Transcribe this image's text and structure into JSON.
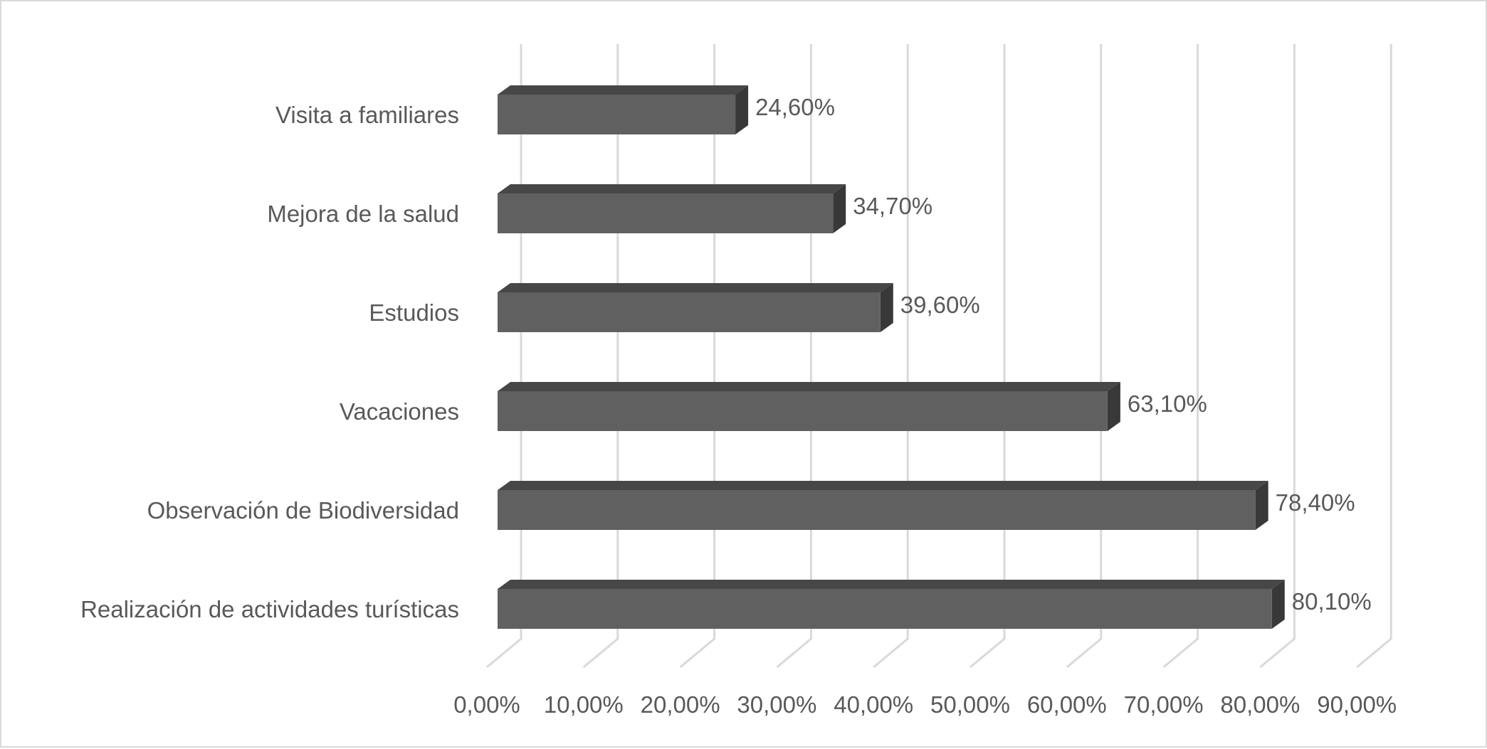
{
  "chart_data": {
    "type": "bar",
    "orientation": "horizontal",
    "style": "3d",
    "title": "",
    "xlabel": "",
    "ylabel": "",
    "categories": [
      "Visita a familiares",
      "Mejora de la salud",
      "Estudios",
      "Vacaciones",
      "Observación de Biodiversidad",
      "Realización de actividades turísticas"
    ],
    "values": [
      24.6,
      34.7,
      39.6,
      63.1,
      78.4,
      80.1
    ],
    "data_labels": [
      "24,60%",
      "34,70%",
      "39,60%",
      "63,10%",
      "78,40%",
      "80,10%"
    ],
    "xlim": [
      0,
      90
    ],
    "x_ticks": [
      0,
      10,
      20,
      30,
      40,
      50,
      60,
      70,
      80,
      90
    ],
    "x_tick_labels": [
      "0,00%",
      "10,00%",
      "20,00%",
      "30,00%",
      "40,00%",
      "50,00%",
      "60,00%",
      "70,00%",
      "80,00%",
      "90,00%"
    ],
    "grid": true,
    "legend": "none",
    "colors": {
      "bar_front": "#606060",
      "bar_top": "#474747",
      "bar_side": "#383838",
      "grid": "#d9d9d9",
      "text": "#595959"
    }
  }
}
